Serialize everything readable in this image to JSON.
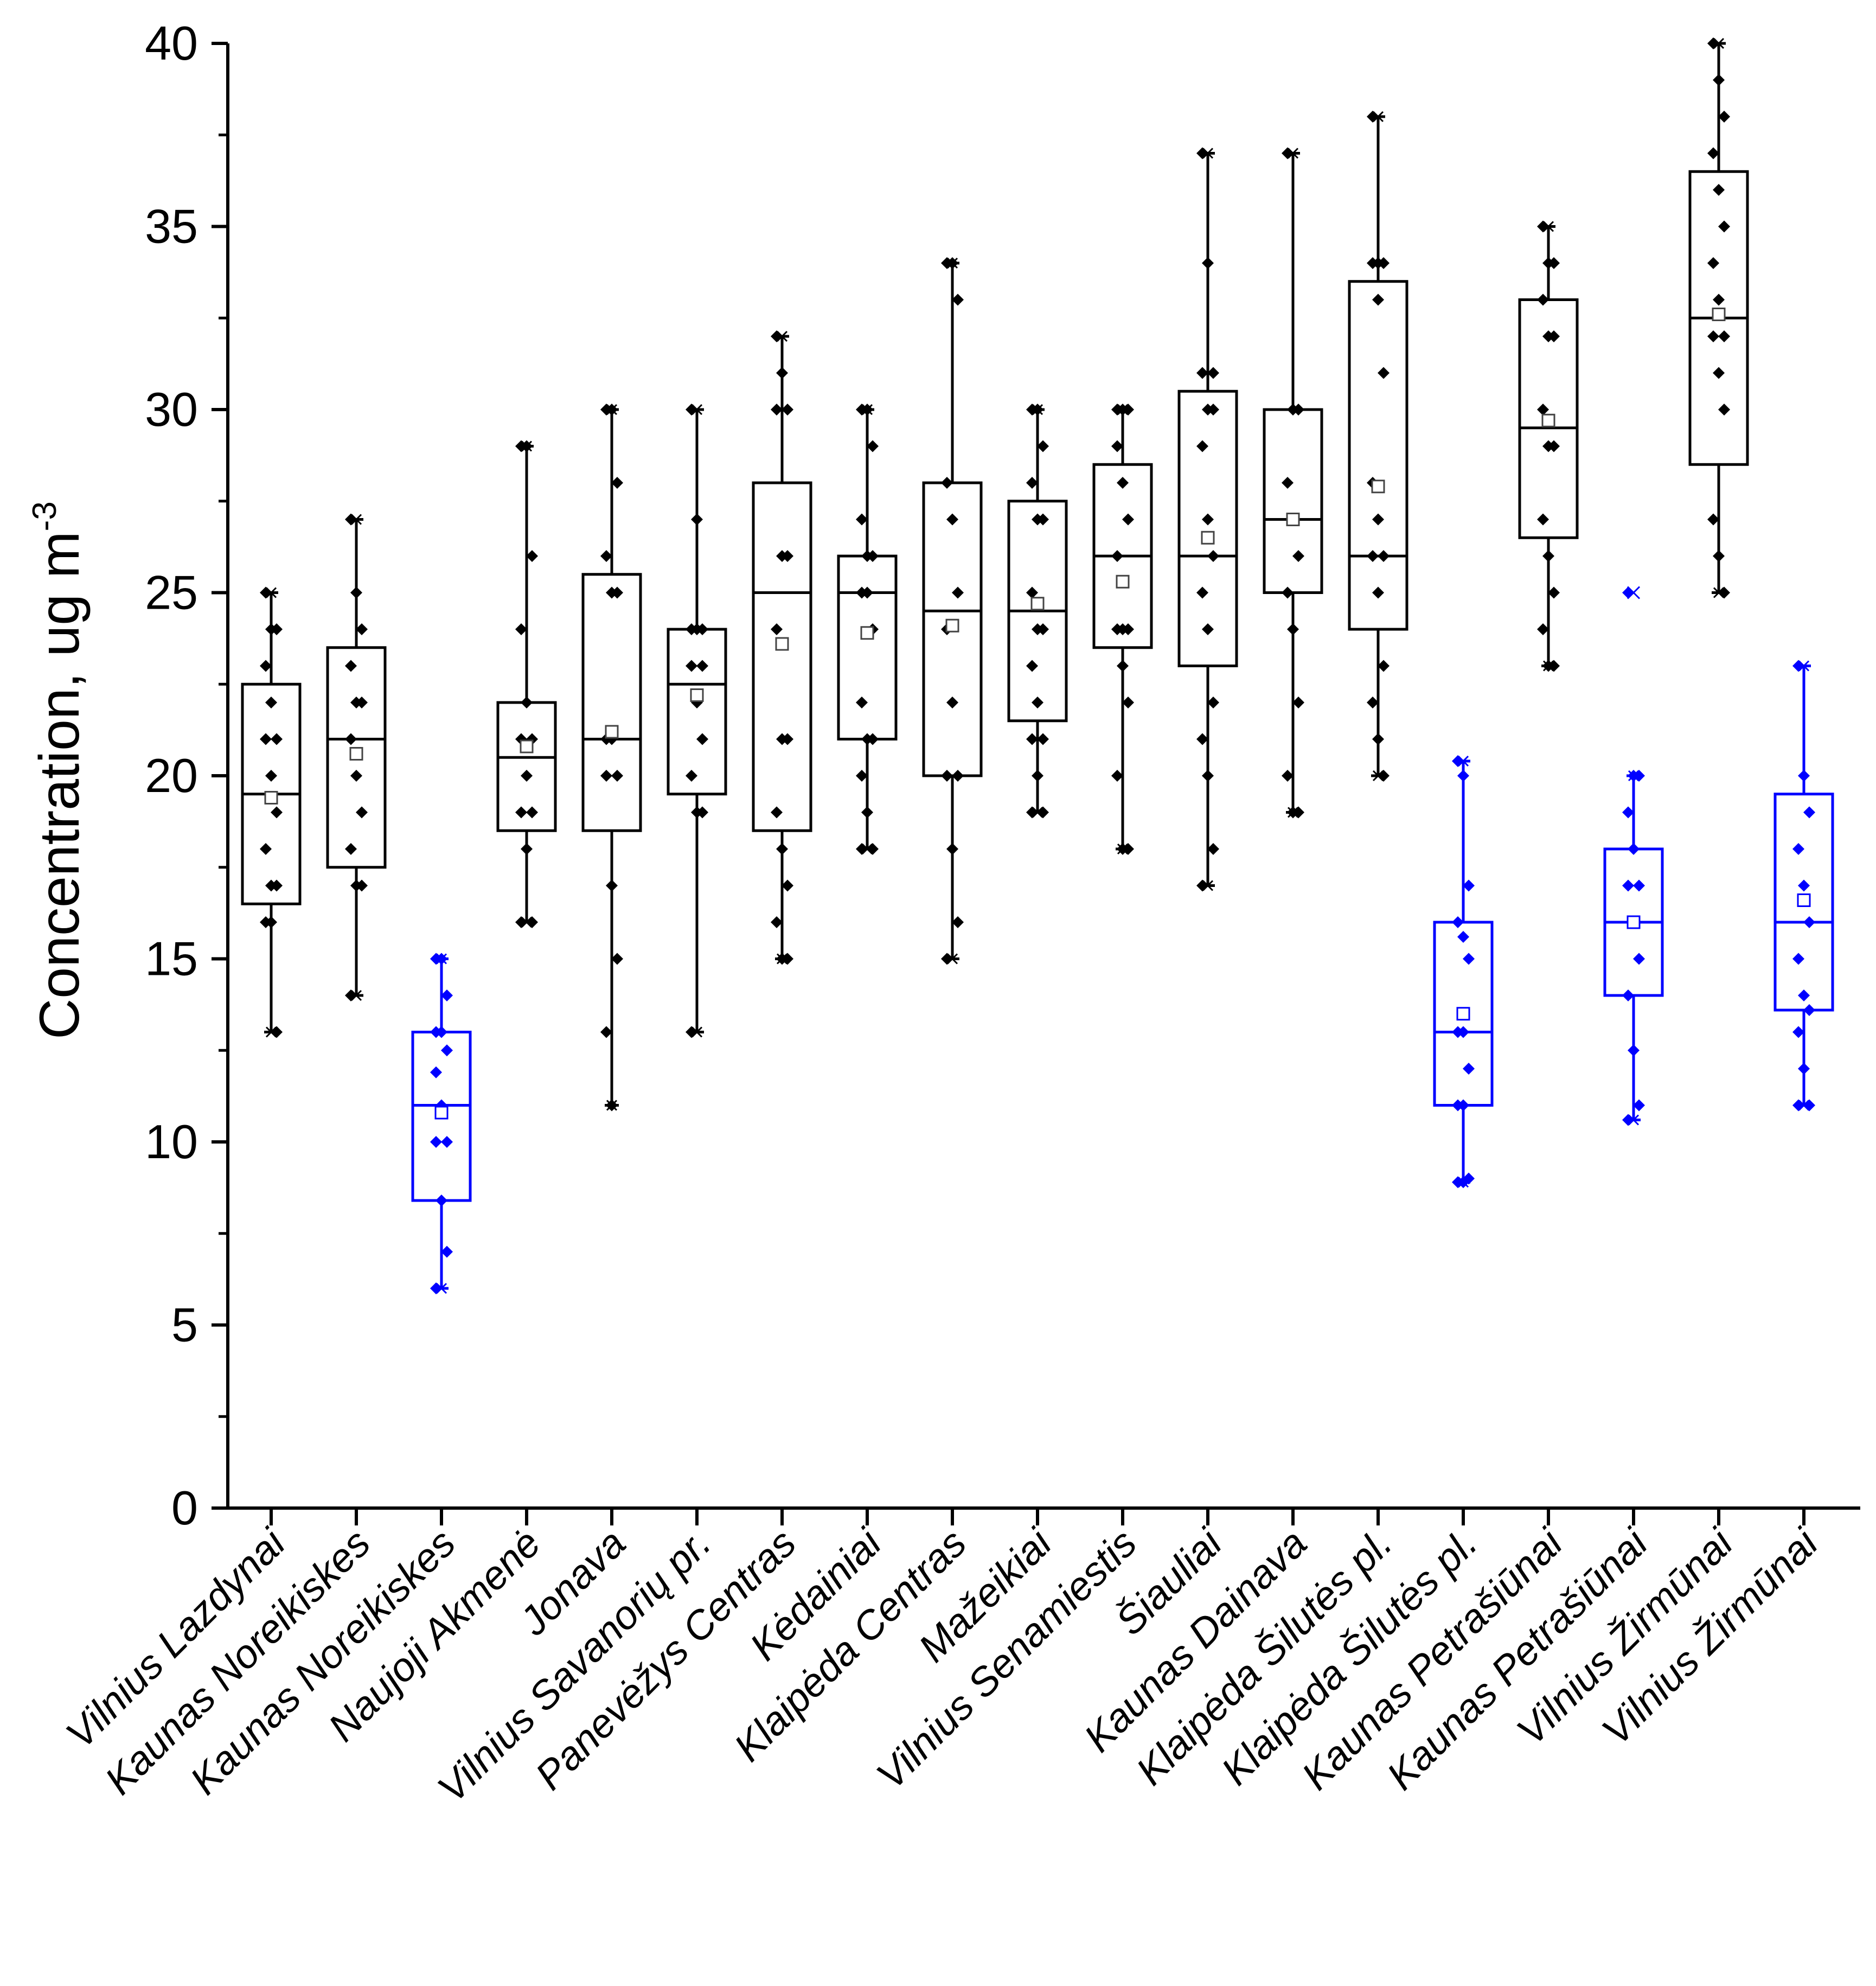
{
  "chart_data": {
    "type": "box",
    "title": "",
    "xlabel": "",
    "ylabel": "Concentration, ug m",
    "ylabel_superscript": "-3",
    "ylim": [
      0,
      40
    ],
    "yticks": [
      "0",
      "5",
      "10",
      "15",
      "20",
      "25",
      "30",
      "35",
      "40"
    ],
    "colors": {
      "black_series": "#000000",
      "blue_series": "#0000ff"
    },
    "boxes": [
      {
        "label": "Vilnius Lazdynai",
        "color": "#000000",
        "min": 13,
        "q1": 16.5,
        "median": 19.5,
        "q3": 22.5,
        "max": 25,
        "mean": 19.4,
        "points": [
          25,
          24,
          24,
          23,
          22,
          21,
          21,
          20,
          19,
          18,
          17,
          17,
          16,
          16,
          13
        ]
      },
      {
        "label": "Kaunas Noreikiskes",
        "color": "#000000",
        "min": 14,
        "q1": 17.5,
        "median": 21,
        "q3": 23.5,
        "max": 27,
        "mean": 20.6,
        "points": [
          27,
          25,
          24,
          23,
          22,
          22,
          21,
          20,
          19,
          18,
          17,
          17,
          14
        ]
      },
      {
        "label": "Kaunas Noreikiskes",
        "color": "#0000ff",
        "min": 6,
        "q1": 8.4,
        "median": 11,
        "q3": 13,
        "max": 15,
        "mean": 10.8,
        "points": [
          15,
          15,
          14,
          13,
          13,
          12.5,
          11.9,
          11,
          10,
          10,
          8.4,
          7,
          6
        ]
      },
      {
        "label": "Naujoji Akmenė",
        "color": "#000000",
        "min": 16,
        "q1": 18.5,
        "median": 20.5,
        "q3": 22,
        "max": 29,
        "mean": 20.8,
        "points": [
          29,
          29,
          26,
          24,
          22,
          21,
          21,
          20,
          19,
          19,
          18,
          16,
          16
        ]
      },
      {
        "label": "Jonava",
        "color": "#000000",
        "min": 11,
        "q1": 18.5,
        "median": 21,
        "q3": 25.5,
        "max": 30,
        "mean": 21.2,
        "points": [
          30,
          30,
          28,
          26,
          25,
          25,
          21,
          21,
          20,
          20,
          17,
          15,
          13,
          11
        ]
      },
      {
        "label": "Vilnius Savanorių pr.",
        "color": "#000000",
        "min": 13,
        "q1": 19.5,
        "median": 22.5,
        "q3": 24,
        "max": 30,
        "mean": 22.2,
        "points": [
          30,
          27,
          24,
          24,
          24,
          23,
          23,
          22,
          21,
          20,
          19,
          19,
          13
        ]
      },
      {
        "label": "Panevėžys Centras",
        "color": "#000000",
        "min": 15,
        "q1": 18.5,
        "median": 25,
        "q3": 28,
        "max": 32,
        "mean": 23.6,
        "points": [
          32,
          31,
          30,
          30,
          26,
          26,
          24,
          21,
          21,
          19,
          18,
          17,
          16,
          15,
          15
        ]
      },
      {
        "label": "Kėdainiai",
        "color": "#000000",
        "min": 18,
        "q1": 21,
        "median": 25,
        "q3": 26,
        "max": 30,
        "mean": 23.9,
        "points": [
          30,
          30,
          29,
          27,
          26,
          26,
          25,
          25,
          24,
          22,
          21,
          21,
          20,
          19,
          18,
          18
        ]
      },
      {
        "label": "Klaipėda Centras",
        "color": "#000000",
        "min": 15,
        "q1": 20,
        "median": 24.5,
        "q3": 28,
        "max": 34,
        "mean": 24.1,
        "points": [
          34,
          34,
          33,
          28,
          27,
          25,
          24,
          22,
          20,
          20,
          18,
          16,
          15
        ]
      },
      {
        "label": "Mažeikiai",
        "color": "#000000",
        "min": 19,
        "q1": 21.5,
        "median": 24.5,
        "q3": 27.5,
        "max": 30,
        "mean": 24.7,
        "points": [
          30,
          30,
          29,
          28,
          27,
          27,
          25,
          24,
          24,
          23,
          22,
          21,
          21,
          20,
          19,
          19
        ]
      },
      {
        "label": "Vilnius Senamiestis",
        "color": "#000000",
        "min": 18,
        "q1": 23.5,
        "median": 26,
        "q3": 28.5,
        "max": 30,
        "mean": 25.3,
        "points": [
          30,
          30,
          30,
          29,
          28,
          27,
          26,
          24,
          24,
          24,
          23,
          22,
          20,
          18,
          18
        ]
      },
      {
        "label": "Šiauliai",
        "color": "#000000",
        "min": 17,
        "q1": 23,
        "median": 26,
        "q3": 30.5,
        "max": 37,
        "mean": 26.5,
        "points": [
          37,
          34,
          31,
          31,
          30,
          30,
          29,
          27,
          26,
          25,
          24,
          22,
          21,
          20,
          18,
          17
        ]
      },
      {
        "label": "Kaunas Dainava",
        "color": "#000000",
        "min": 19,
        "q1": 25,
        "median": 27,
        "q3": 30,
        "max": 37,
        "mean": 27,
        "points": [
          37,
          30,
          30,
          28,
          27,
          26,
          25,
          24,
          22,
          20,
          19,
          19
        ]
      },
      {
        "label": "Klaipėda Šilutės pl.",
        "color": "#000000",
        "min": 20,
        "q1": 24,
        "median": 26,
        "q3": 33.5,
        "max": 38,
        "mean": 27.9,
        "points": [
          38,
          34,
          34,
          34,
          33,
          31,
          28,
          27,
          26,
          26,
          25,
          23,
          22,
          21,
          20
        ]
      },
      {
        "label": "Klaipėda Šilutės pl.",
        "color": "#0000ff",
        "min": 8.9,
        "q1": 11,
        "median": 13,
        "q3": 16,
        "max": 20.4,
        "mean": 13.5,
        "points": [
          20.4,
          20,
          17,
          16,
          15.6,
          15,
          13,
          13,
          12,
          11,
          11,
          9,
          8.9,
          8.9
        ]
      },
      {
        "label": "Kaunas Petrašiūnai",
        "color": "#000000",
        "min": 23,
        "q1": 26.5,
        "median": 29.5,
        "q3": 33,
        "max": 35,
        "mean": 29.7,
        "points": [
          35,
          34,
          34,
          33,
          32,
          32,
          30,
          29,
          29,
          27,
          26,
          25,
          24,
          23,
          23
        ]
      },
      {
        "label": "Kaunas Petrašiūnai",
        "color": "#0000ff",
        "min": 10.6,
        "q1": 14,
        "median": 16,
        "q3": 18,
        "max": 20,
        "mean": 16,
        "points": [
          25,
          20,
          20,
          19,
          18,
          17,
          17,
          16,
          15,
          14,
          12.5,
          11,
          10.6
        ]
      },
      {
        "label": "Vilnius Žirmūnai",
        "color": "#000000",
        "min": 25,
        "q1": 28.5,
        "median": 32.5,
        "q3": 36.5,
        "max": 40,
        "mean": 32.6,
        "points": [
          40,
          39,
          38,
          37,
          36,
          35,
          34,
          33,
          32,
          32,
          31,
          30,
          27,
          26,
          25
        ]
      },
      {
        "label": "Vilnius Žirmūnai",
        "color": "#0000ff",
        "min": 11,
        "q1": 13.6,
        "median": 16,
        "q3": 19.5,
        "max": 23,
        "mean": 16.6,
        "points": [
          23,
          20,
          19,
          18,
          17,
          16,
          15,
          14,
          13.6,
          13,
          12,
          11,
          11
        ]
      }
    ]
  }
}
